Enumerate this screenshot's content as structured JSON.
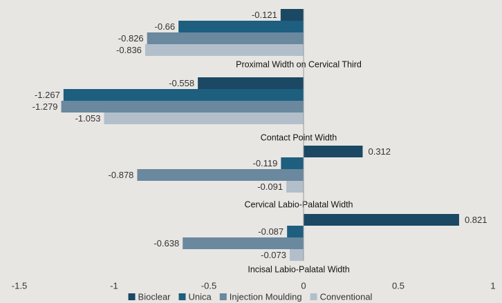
{
  "chart_data": {
    "type": "barh",
    "categories": [
      "Proximal Width on Cervical Third",
      "Contact Point Width",
      "Cervical Labio-Palatal Width",
      "Incisal Labio-Palatal Width"
    ],
    "series": [
      {
        "name": "Bioclear",
        "color": "#1b4863",
        "values": [
          -0.121,
          -0.558,
          0.312,
          0.821
        ]
      },
      {
        "name": "Unica",
        "color": "#1e5e7e",
        "values": [
          -0.66,
          -1.267,
          -0.119,
          -0.087
        ]
      },
      {
        "name": "Injection Moulding",
        "color": "#6a889e",
        "values": [
          -0.826,
          -1.279,
          -0.878,
          -0.638
        ]
      },
      {
        "name": "Conventional",
        "color": "#b2bfcb",
        "values": [
          -0.836,
          -1.053,
          -0.091,
          -0.073
        ]
      }
    ],
    "xlim": [
      -1.5,
      1
    ],
    "xticks": [
      -1.5,
      -1,
      -0.5,
      0,
      0.5,
      1
    ],
    "legend": "bottom"
  }
}
